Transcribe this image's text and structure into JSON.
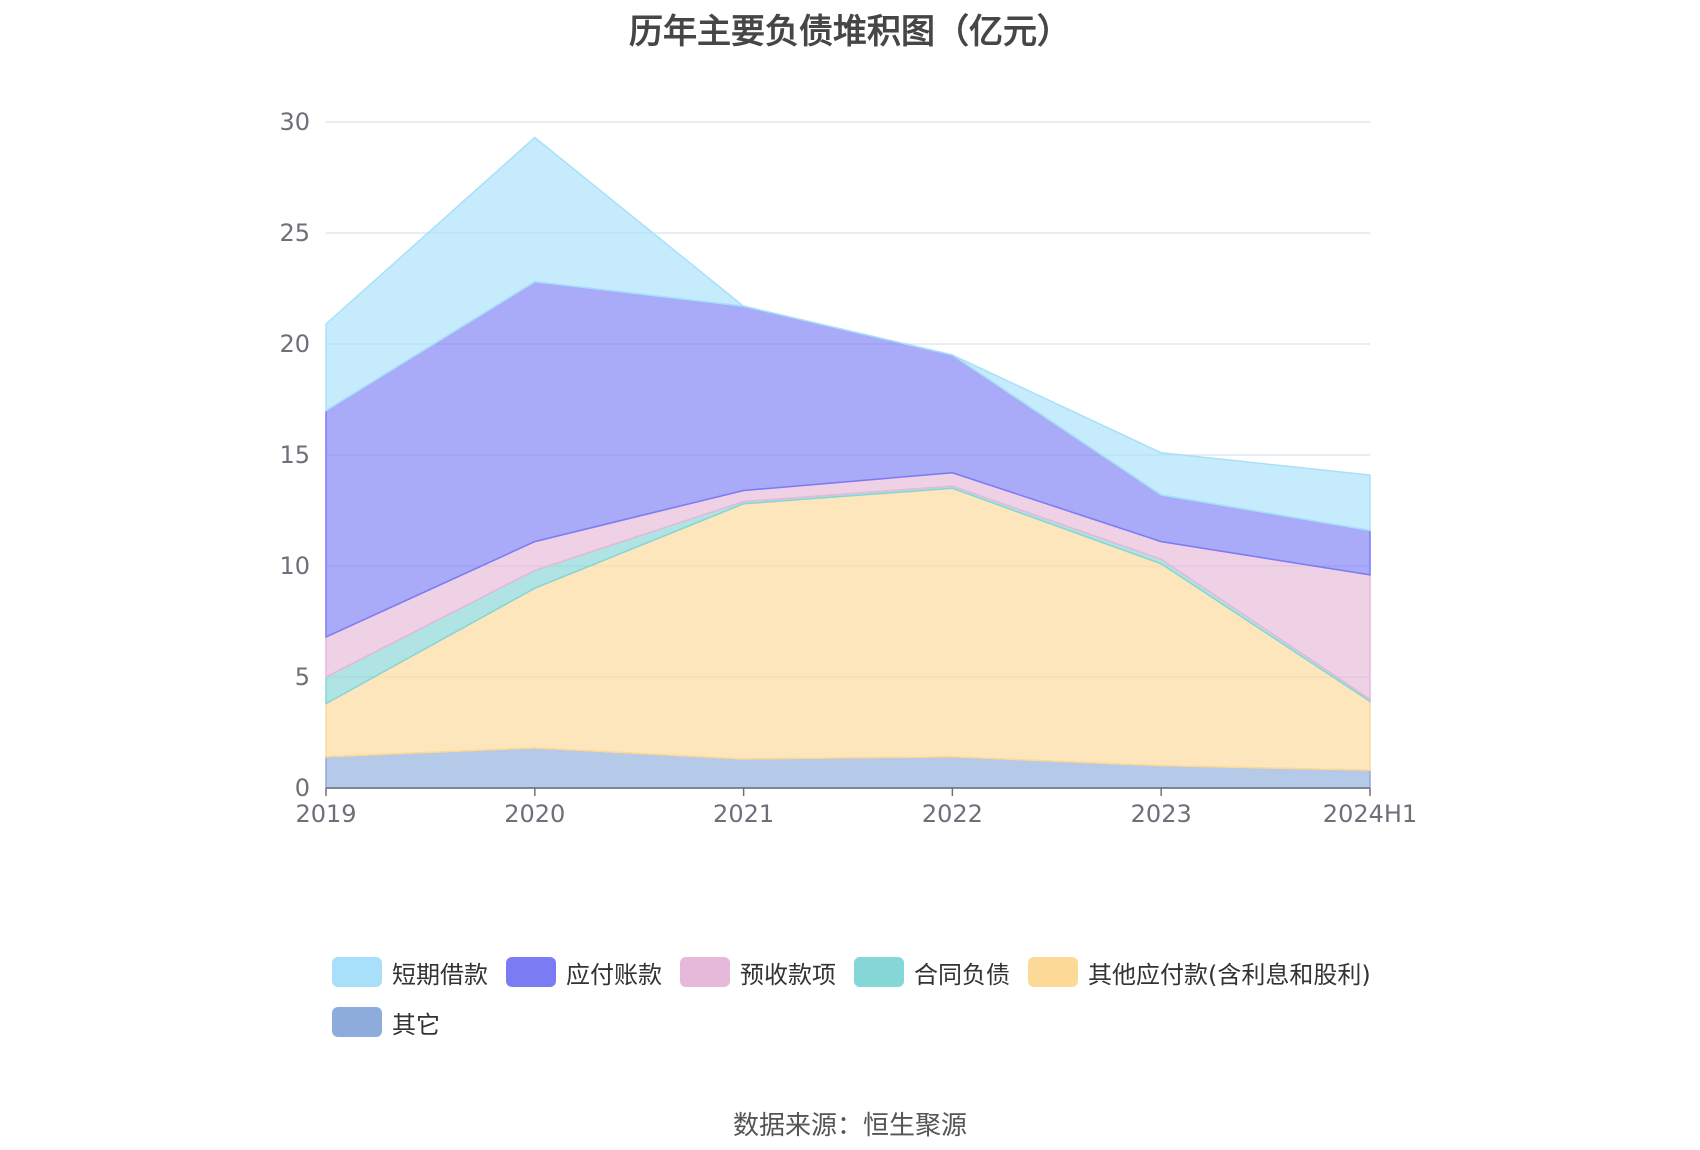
{
  "chart_data": {
    "type": "area",
    "stacked": true,
    "title": "历年主要负债堆积图（亿元）",
    "categories": [
      "2019",
      "2020",
      "2021",
      "2022",
      "2023",
      "2024H1"
    ],
    "ylim": [
      0,
      30
    ],
    "yticks": [
      0,
      5,
      10,
      15,
      20,
      25,
      30
    ],
    "grid": true,
    "legend_position": "bottom",
    "series": [
      {
        "name": "其它",
        "color": "#8eacdb",
        "values": [
          1.4,
          1.8,
          1.3,
          1.4,
          1.0,
          0.8
        ]
      },
      {
        "name": "其他应付款(含利息和股利)",
        "color": "#fdd998",
        "values": [
          2.4,
          7.2,
          11.5,
          12.1,
          9.1,
          3.1
        ]
      },
      {
        "name": "合同负债",
        "color": "#85d6d6",
        "values": [
          1.2,
          0.8,
          0.1,
          0.1,
          0.2,
          0.1
        ]
      },
      {
        "name": "预收款项",
        "color": "#e6b8d9",
        "values": [
          1.8,
          1.3,
          0.5,
          0.6,
          0.8,
          5.6
        ]
      },
      {
        "name": "应付账款",
        "color": "#7b7cf4",
        "values": [
          10.2,
          11.7,
          8.3,
          5.3,
          2.1,
          2.0
        ]
      },
      {
        "name": "短期借款",
        "color": "#a8e0fa",
        "values": [
          3.9,
          6.5,
          0.0,
          0.0,
          1.9,
          2.5
        ]
      }
    ]
  },
  "legend_order": [
    "短期借款",
    "应付账款",
    "预收款项",
    "合同负债",
    "其他应付款(含利息和股利)",
    "其它"
  ],
  "source": "数据来源：恒生聚源"
}
